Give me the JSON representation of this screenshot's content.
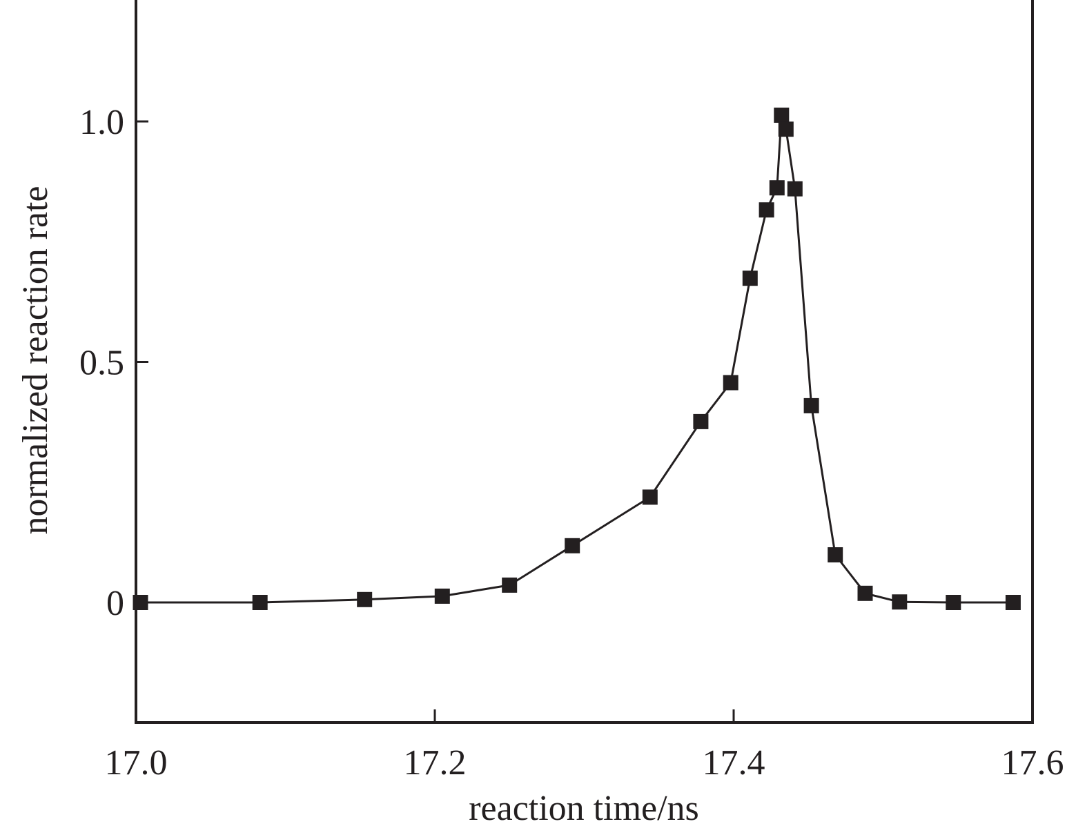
{
  "chart_data": {
    "type": "line",
    "title": "",
    "xlabel": "reaction time/ns",
    "ylabel": "normalized reaction rate",
    "xlim": [
      17.0,
      17.6
    ],
    "ylim": [
      -0.25,
      1.25
    ],
    "xticks": [
      17.0,
      17.2,
      17.4,
      17.6
    ],
    "xtick_labels": [
      "17.0",
      "17.2",
      "17.4",
      "17.6"
    ],
    "yticks": [
      0,
      0.5,
      1.0
    ],
    "ytick_labels": [
      "0",
      "0.5",
      "1.0"
    ],
    "grid": false,
    "marker": "square",
    "series": [
      {
        "x": [
          17.003,
          17.083,
          17.153,
          17.205,
          17.25,
          17.292,
          17.344,
          17.378,
          17.398,
          17.411,
          17.422,
          17.429,
          17.432,
          17.435,
          17.441,
          17.452,
          17.468,
          17.488,
          17.511,
          17.547,
          17.587
        ],
        "y": [
          0.0,
          0.0,
          0.006,
          0.013,
          0.036,
          0.118,
          0.219,
          0.376,
          0.457,
          0.674,
          0.816,
          0.862,
          1.013,
          0.984,
          0.86,
          0.409,
          0.099,
          0.019,
          0.001,
          0.0,
          0.0
        ]
      }
    ],
    "colors": {
      "line": "#231f20",
      "marker": "#231f20",
      "frame": "#231f20"
    }
  }
}
